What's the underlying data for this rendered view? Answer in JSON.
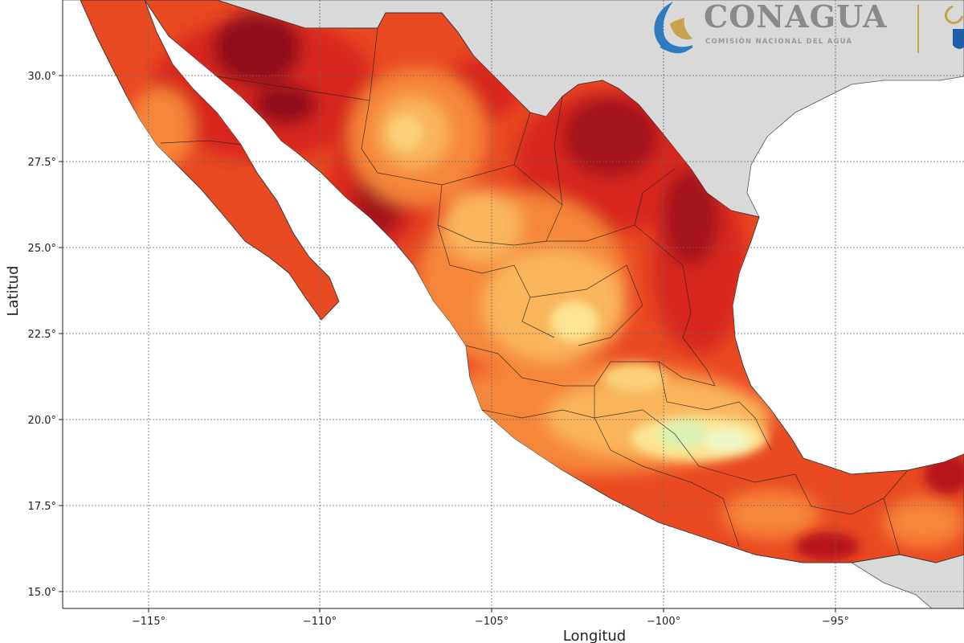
{
  "axes": {
    "x_label": "Longitud",
    "y_label": "Latitud",
    "x_ticks": [
      "−115°",
      "−110°",
      "−105°",
      "−100°",
      "−95°"
    ],
    "y_ticks": [
      "30.0°",
      "27.5°",
      "25.0°",
      "22.5°",
      "20.0°",
      "17.5°",
      "15.0°"
    ]
  },
  "logo": {
    "name": "CONAGUA",
    "subtitle": "COMISIÓN NACIONAL DEL AGUA"
  },
  "colors": {
    "ocean": "#ffffff",
    "foreign_land": "#d9d9d9",
    "deep_red": "#8e0a1c",
    "red": "#d8261e",
    "red_orange": "#ea4a22",
    "orange": "#f5873a",
    "light_orange": "#f9b45c",
    "pale_yellow": "#fbe592",
    "light_green": "#d9f2b0"
  }
}
